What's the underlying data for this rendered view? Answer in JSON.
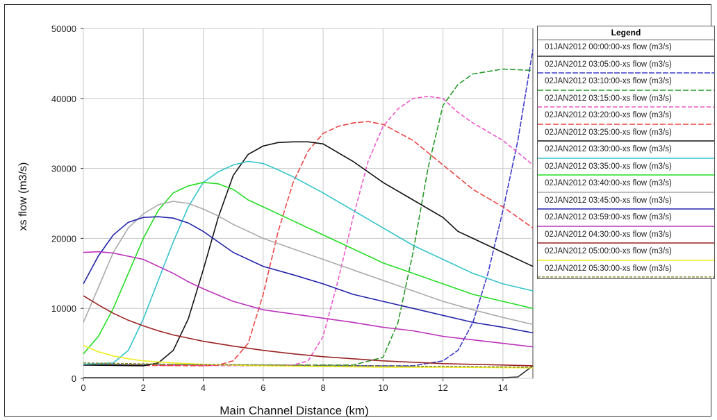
{
  "chart_data": {
    "type": "line",
    "xlabel": "Main Channel Distance (km)",
    "ylabel": "xs flow (m3/s)",
    "xlim": [
      0,
      15
    ],
    "ylim": [
      0,
      50000
    ],
    "x_ticks": [
      "0",
      "2",
      "4",
      "6",
      "8",
      "10",
      "12",
      "14"
    ],
    "y_ticks": [
      "0",
      "10000",
      "20000",
      "30000",
      "40000",
      "50000"
    ],
    "grid": true,
    "legend_title": "Legend",
    "legend_position": "right",
    "series": [
      {
        "name": "01JAN2012 00:00:00-xs flow (m3/s)",
        "color": "#2b2b2b",
        "dash": "",
        "x": [
          0,
          14,
          14.5,
          15
        ],
        "y": [
          100,
          100,
          200,
          1800
        ]
      },
      {
        "name": "02JAN2012 03:05:00-xs flow (m3/s)",
        "color": "#3a3acc",
        "dash": "8,2",
        "x": [
          0,
          5,
          10,
          11,
          12,
          12.5,
          13,
          13.5,
          14,
          14.5,
          15
        ],
        "y": [
          2000,
          1900,
          1800,
          1800,
          2500,
          4000,
          8000,
          15000,
          24000,
          34000,
          47000
        ]
      },
      {
        "name": "02JAN2012 03:10:00-xs flow (m3/s)",
        "color": "#2a9a2a",
        "dash": "8,3",
        "x": [
          0,
          7,
          9,
          10,
          10.5,
          11,
          11.5,
          12,
          12.5,
          13,
          14,
          15
        ],
        "y": [
          2000,
          1900,
          1900,
          3000,
          8000,
          18000,
          30000,
          39000,
          42000,
          43500,
          44200,
          44000
        ]
      },
      {
        "name": "02JAN2012 03:15:00-xs flow (m3/s)",
        "color": "#ee55cc",
        "dash": "6,3",
        "x": [
          0,
          6,
          7,
          7.5,
          8,
          8.5,
          9,
          9.5,
          10,
          10.5,
          11,
          11.5,
          12,
          12.5,
          13,
          14,
          15
        ],
        "y": [
          1900,
          1800,
          1900,
          2500,
          6000,
          14000,
          23000,
          31000,
          36000,
          38500,
          40000,
          40300,
          40000,
          38000,
          36500,
          34000,
          30500
        ]
      },
      {
        "name": "02JAN2012 03:20:00-xs flow (m3/s)",
        "color": "#ee4444",
        "dash": "8,3",
        "x": [
          0,
          4,
          4.5,
          5,
          5.5,
          6,
          6.5,
          7,
          7.5,
          8,
          8.5,
          9,
          9.5,
          10,
          11,
          12,
          13,
          14,
          15
        ],
        "y": [
          1900,
          1800,
          1900,
          2500,
          5000,
          12000,
          21000,
          28000,
          32500,
          35000,
          36000,
          36500,
          36700,
          36300,
          34000,
          30500,
          27000,
          24500,
          21500
        ]
      },
      {
        "name": "02JAN2012 03:25:00-xs flow (m3/s)",
        "color": "#111111",
        "dash": "",
        "x": [
          0,
          2,
          2.5,
          3,
          3.5,
          4,
          4.5,
          5,
          5.5,
          6,
          6.5,
          7,
          7.5,
          8,
          9,
          10,
          11,
          12,
          12.5,
          13,
          14,
          15
        ],
        "y": [
          1900,
          1800,
          2200,
          4000,
          8500,
          15500,
          23000,
          29000,
          32000,
          33200,
          33700,
          33800,
          33800,
          33500,
          31000,
          28000,
          25500,
          23000,
          21000,
          20000,
          18000,
          16000
        ]
      },
      {
        "name": "02JAN2012 03:30:00-xs flow (m3/s)",
        "color": "#33c4cc",
        "dash": "",
        "x": [
          0,
          1,
          1.5,
          2,
          2.5,
          3,
          3.5,
          4,
          4.5,
          5,
          5.5,
          6,
          6.5,
          7,
          8,
          9,
          10,
          11,
          12,
          13,
          14,
          15
        ],
        "y": [
          2000,
          2200,
          4000,
          8500,
          14000,
          19500,
          24500,
          28000,
          29500,
          30500,
          31000,
          30700,
          29800,
          28800,
          26500,
          24000,
          21500,
          19000,
          17000,
          15000,
          13500,
          12500
        ]
      },
      {
        "name": "02JAN2012 03:35:00-xs flow (m3/s)",
        "color": "#22dd22",
        "dash": "",
        "x": [
          0,
          0.5,
          1,
          1.5,
          2,
          2.5,
          3,
          3.5,
          4,
          4.5,
          5,
          5.5,
          6,
          7,
          8,
          9,
          10,
          11,
          12,
          13,
          14,
          15
        ],
        "y": [
          3500,
          6000,
          10000,
          15000,
          20000,
          24000,
          26500,
          27500,
          28000,
          27800,
          27000,
          25500,
          24500,
          22500,
          20500,
          18500,
          16500,
          15000,
          13500,
          12000,
          11000,
          10000
        ]
      },
      {
        "name": "02JAN2012 03:40:00-xs flow (m3/s)",
        "color": "#aaaaaa",
        "dash": "",
        "x": [
          0,
          0.5,
          1,
          1.5,
          2,
          2.5,
          3,
          3.5,
          4,
          4.5,
          5,
          6,
          7,
          8,
          9,
          10,
          11,
          12,
          13,
          14,
          15
        ],
        "y": [
          8000,
          13000,
          18000,
          21500,
          23500,
          24800,
          25300,
          25000,
          24200,
          23200,
          22000,
          20000,
          18500,
          17000,
          15500,
          14000,
          12500,
          11000,
          9800,
          8700,
          7700
        ]
      },
      {
        "name": "02JAN2012 03:45:00-xs flow (m3/s)",
        "color": "#2222aa",
        "dash": "",
        "x": [
          0,
          0.5,
          1,
          1.5,
          2,
          2.5,
          3,
          3.5,
          4,
          5,
          6,
          7,
          8,
          9,
          10,
          11,
          12,
          13,
          14,
          15
        ],
        "y": [
          13500,
          17500,
          20500,
          22300,
          23000,
          23100,
          22900,
          22200,
          21000,
          18000,
          16000,
          14800,
          13500,
          12000,
          11000,
          10000,
          9000,
          8000,
          7300,
          6500
        ]
      },
      {
        "name": "02JAN2012 03:59:00-xs flow (m3/s)",
        "color": "#bb33bb",
        "dash": "",
        "x": [
          0,
          0.5,
          1,
          2,
          3,
          3.5,
          4,
          5,
          6,
          7,
          8,
          9,
          10,
          11,
          12,
          13,
          14,
          15
        ],
        "y": [
          18000,
          18100,
          17900,
          17000,
          15000,
          13800,
          12800,
          11000,
          9800,
          9200,
          8600,
          8000,
          7300,
          6800,
          6000,
          5500,
          5000,
          4500
        ]
      },
      {
        "name": "02JAN2012 04:30:00-xs flow (m3/s)",
        "color": "#992222",
        "dash": "",
        "x": [
          0,
          0.5,
          1,
          1.5,
          2,
          2.5,
          3,
          4,
          5,
          6,
          7,
          8,
          9,
          10,
          11,
          12,
          13,
          14,
          15
        ],
        "y": [
          11800,
          10500,
          9300,
          8300,
          7500,
          6800,
          6200,
          5300,
          4600,
          4000,
          3500,
          3100,
          2800,
          2500,
          2300,
          2100,
          2000,
          1900,
          1800
        ]
      },
      {
        "name": "02JAN2012 05:00:00-xs flow (m3/s)",
        "color": "#eeee22",
        "dash": "",
        "x": [
          0,
          0.5,
          1,
          1.5,
          2,
          3,
          4,
          6,
          8,
          10,
          12,
          15
        ],
        "y": [
          4700,
          3800,
          3200,
          2800,
          2500,
          2200,
          2000,
          1800,
          1700,
          1600,
          1600,
          1500
        ]
      },
      {
        "name": "02JAN2012 05:30:00-xs flow (m3/s)",
        "color": "#8a8a3a",
        "dash": "4,2",
        "x": [
          0,
          3,
          6,
          9,
          12,
          15
        ],
        "y": [
          2200,
          2000,
          1900,
          1800,
          1700,
          1600
        ]
      }
    ]
  }
}
